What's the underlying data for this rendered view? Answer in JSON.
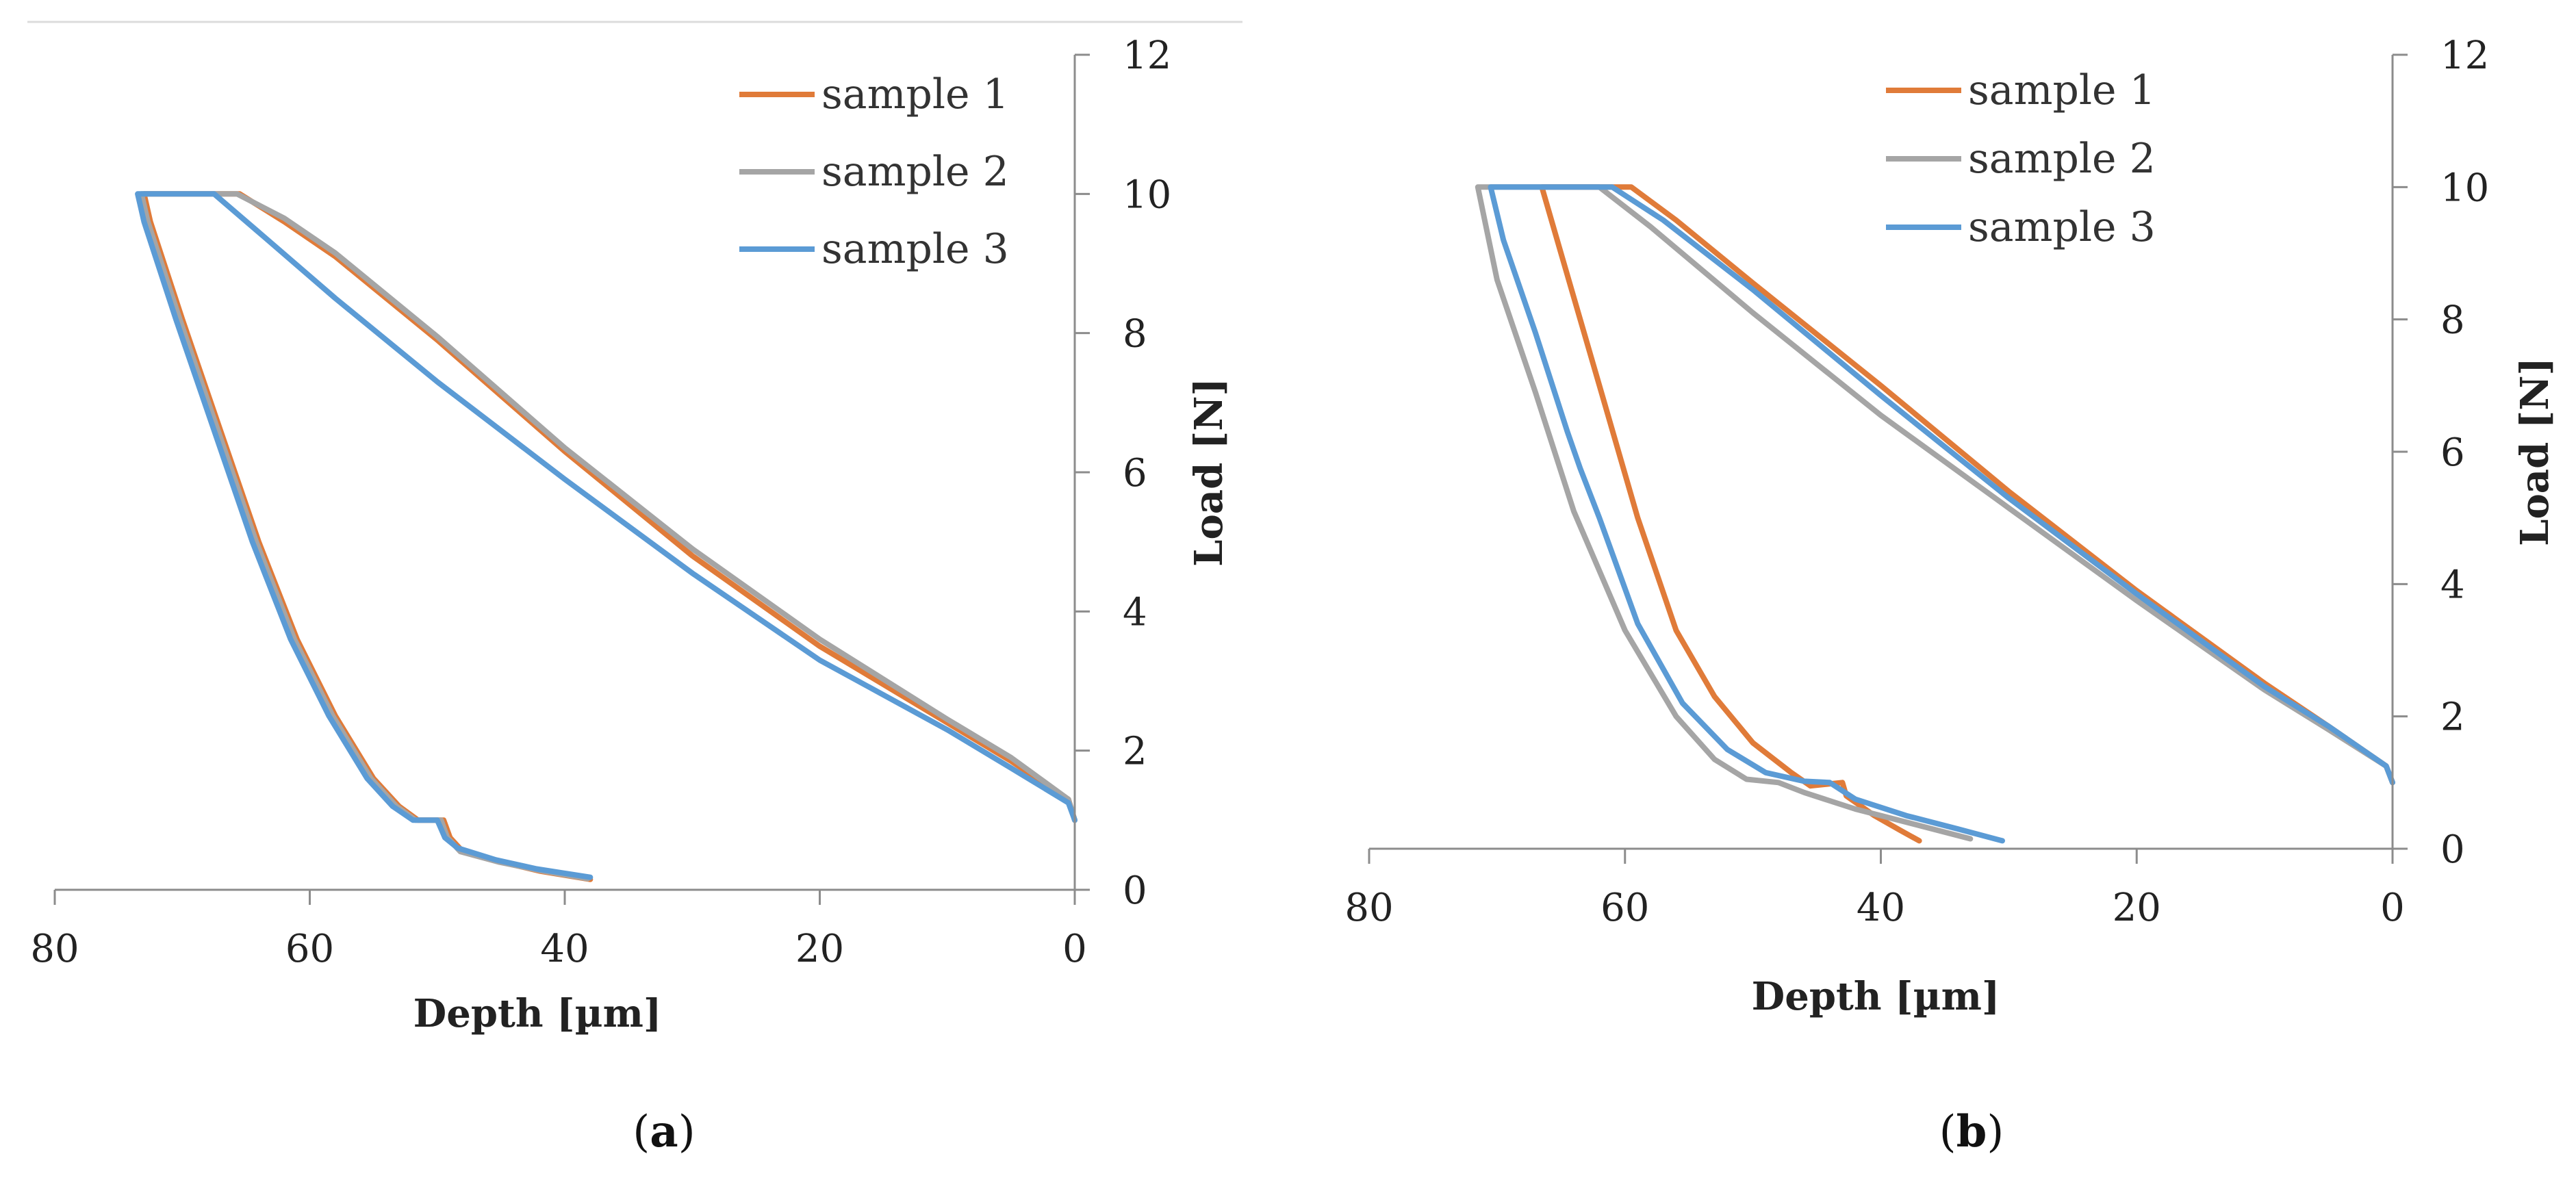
{
  "chart_data": [
    {
      "type": "line",
      "panel_label": "a",
      "xlabel": "Depth [µm]",
      "ylabel": "Load [N]",
      "xlim": [
        80,
        0
      ],
      "ylim": [
        0,
        12
      ],
      "xticks": [
        80,
        60,
        40,
        20,
        0
      ],
      "yticks": [
        0,
        2,
        4,
        6,
        8,
        10,
        12
      ],
      "legend_position": "top-right",
      "series": [
        {
          "name": "sample 1",
          "color": "#e07b39",
          "points": [
            [
              0,
              1.0
            ],
            [
              0.5,
              1.3
            ],
            [
              5,
              1.85
            ],
            [
              10,
              2.4
            ],
            [
              20,
              3.5
            ],
            [
              30,
              4.8
            ],
            [
              40,
              6.3
            ],
            [
              50,
              7.9
            ],
            [
              58,
              9.1
            ],
            [
              62,
              9.6
            ],
            [
              65.5,
              10.0
            ],
            [
              73,
              10.0
            ],
            [
              72.5,
              9.6
            ],
            [
              70,
              8.2
            ],
            [
              67,
              6.6
            ],
            [
              64,
              5.0
            ],
            [
              61,
              3.6
            ],
            [
              58,
              2.5
            ],
            [
              55,
              1.6
            ],
            [
              53,
              1.2
            ],
            [
              51.5,
              1.0
            ],
            [
              49.5,
              1.0
            ],
            [
              49,
              0.75
            ],
            [
              48,
              0.55
            ],
            [
              45,
              0.4
            ],
            [
              42,
              0.27
            ],
            [
              38,
              0.15
            ]
          ]
        },
        {
          "name": "sample 2",
          "color": "#a5a5a5",
          "points": [
            [
              0,
              1.0
            ],
            [
              0.5,
              1.3
            ],
            [
              5,
              1.9
            ],
            [
              10,
              2.45
            ],
            [
              20,
              3.6
            ],
            [
              30,
              4.9
            ],
            [
              40,
              6.35
            ],
            [
              50,
              7.95
            ],
            [
              58,
              9.15
            ],
            [
              62,
              9.65
            ],
            [
              65.7,
              10.0
            ],
            [
              73.2,
              10.0
            ],
            [
              72.7,
              9.6
            ],
            [
              70.2,
              8.2
            ],
            [
              67.2,
              6.6
            ],
            [
              64.2,
              5.0
            ],
            [
              61.2,
              3.6
            ],
            [
              58.2,
              2.5
            ],
            [
              55.2,
              1.6
            ],
            [
              53.2,
              1.2
            ],
            [
              51.7,
              1.0
            ],
            [
              49.7,
              1.0
            ],
            [
              49.2,
              0.75
            ],
            [
              48.2,
              0.55
            ],
            [
              45.2,
              0.4
            ],
            [
              42,
              0.28
            ],
            [
              38.2,
              0.16
            ]
          ]
        },
        {
          "name": "sample 3",
          "color": "#5b9bd5",
          "points": [
            [
              0,
              1.0
            ],
            [
              0.5,
              1.25
            ],
            [
              5,
              1.75
            ],
            [
              10,
              2.3
            ],
            [
              20,
              3.3
            ],
            [
              30,
              4.55
            ],
            [
              40,
              5.9
            ],
            [
              50,
              7.3
            ],
            [
              58,
              8.5
            ],
            [
              64,
              9.45
            ],
            [
              67.5,
              10.0
            ],
            [
              73.5,
              10.0
            ],
            [
              73,
              9.6
            ],
            [
              70.5,
              8.2
            ],
            [
              67.5,
              6.6
            ],
            [
              64.5,
              5.0
            ],
            [
              61.5,
              3.6
            ],
            [
              58.5,
              2.5
            ],
            [
              55.5,
              1.6
            ],
            [
              53.5,
              1.2
            ],
            [
              51.9,
              1.0
            ],
            [
              50,
              1.0
            ],
            [
              49.4,
              0.75
            ],
            [
              48.4,
              0.6
            ],
            [
              45.4,
              0.43
            ],
            [
              42.2,
              0.3
            ],
            [
              38,
              0.18
            ]
          ]
        }
      ]
    },
    {
      "type": "line",
      "panel_label": "b",
      "xlabel": "Depth [µm]",
      "ylabel": "Load [N]",
      "xlim": [
        80,
        0
      ],
      "ylim": [
        0,
        12
      ],
      "xticks": [
        80,
        60,
        40,
        20,
        0
      ],
      "yticks": [
        0,
        2,
        4,
        6,
        8,
        10,
        12
      ],
      "legend_position": "top-center",
      "series": [
        {
          "name": "sample 1",
          "color": "#e07b39",
          "points": [
            [
              0,
              1.0
            ],
            [
              0.5,
              1.25
            ],
            [
              5,
              1.85
            ],
            [
              10,
              2.5
            ],
            [
              20,
              3.9
            ],
            [
              30,
              5.4
            ],
            [
              40,
              7.0
            ],
            [
              50,
              8.55
            ],
            [
              56,
              9.5
            ],
            [
              59.5,
              10.0
            ],
            [
              66.5,
              10.0
            ],
            [
              65,
              9.0
            ],
            [
              62,
              7.0
            ],
            [
              59,
              5.0
            ],
            [
              56,
              3.3
            ],
            [
              53,
              2.3
            ],
            [
              50,
              1.6
            ],
            [
              47,
              1.15
            ],
            [
              45.5,
              0.95
            ],
            [
              43,
              1.0
            ],
            [
              42.7,
              0.8
            ],
            [
              40.5,
              0.5
            ],
            [
              38.5,
              0.28
            ],
            [
              37,
              0.12
            ]
          ]
        },
        {
          "name": "sample 2",
          "color": "#a5a5a5",
          "points": [
            [
              0,
              1.0
            ],
            [
              0.5,
              1.25
            ],
            [
              5,
              1.8
            ],
            [
              10,
              2.4
            ],
            [
              20,
              3.75
            ],
            [
              30,
              5.15
            ],
            [
              40,
              6.55
            ],
            [
              50,
              8.1
            ],
            [
              58,
              9.4
            ],
            [
              62,
              10.0
            ],
            [
              71.5,
              10.0
            ],
            [
              70,
              8.6
            ],
            [
              67,
              6.9
            ],
            [
              64,
              5.1
            ],
            [
              60,
              3.3
            ],
            [
              56,
              2.0
            ],
            [
              53,
              1.35
            ],
            [
              50.5,
              1.05
            ],
            [
              48,
              1.0
            ],
            [
              46,
              0.85
            ],
            [
              42,
              0.6
            ],
            [
              38,
              0.4
            ],
            [
              33,
              0.15
            ]
          ]
        },
        {
          "name": "sample 3",
          "color": "#5b9bd5",
          "points": [
            [
              0,
              1.0
            ],
            [
              0.5,
              1.25
            ],
            [
              5,
              1.85
            ],
            [
              10,
              2.45
            ],
            [
              20,
              3.85
            ],
            [
              30,
              5.3
            ],
            [
              40,
              6.85
            ],
            [
              50,
              8.45
            ],
            [
              57,
              9.5
            ],
            [
              61,
              10.0
            ],
            [
              70.5,
              10.0
            ],
            [
              69.5,
              9.2
            ],
            [
              67,
              7.8
            ],
            [
              64.5,
              6.3
            ],
            [
              63.5,
              5.75
            ],
            [
              62,
              5.0
            ],
            [
              59,
              3.4
            ],
            [
              55.5,
              2.2
            ],
            [
              52,
              1.5
            ],
            [
              49,
              1.15
            ],
            [
              46,
              1.02
            ],
            [
              44,
              1.0
            ],
            [
              42,
              0.75
            ],
            [
              38,
              0.5
            ],
            [
              34,
              0.3
            ],
            [
              30.5,
              0.12
            ]
          ]
        }
      ]
    }
  ]
}
